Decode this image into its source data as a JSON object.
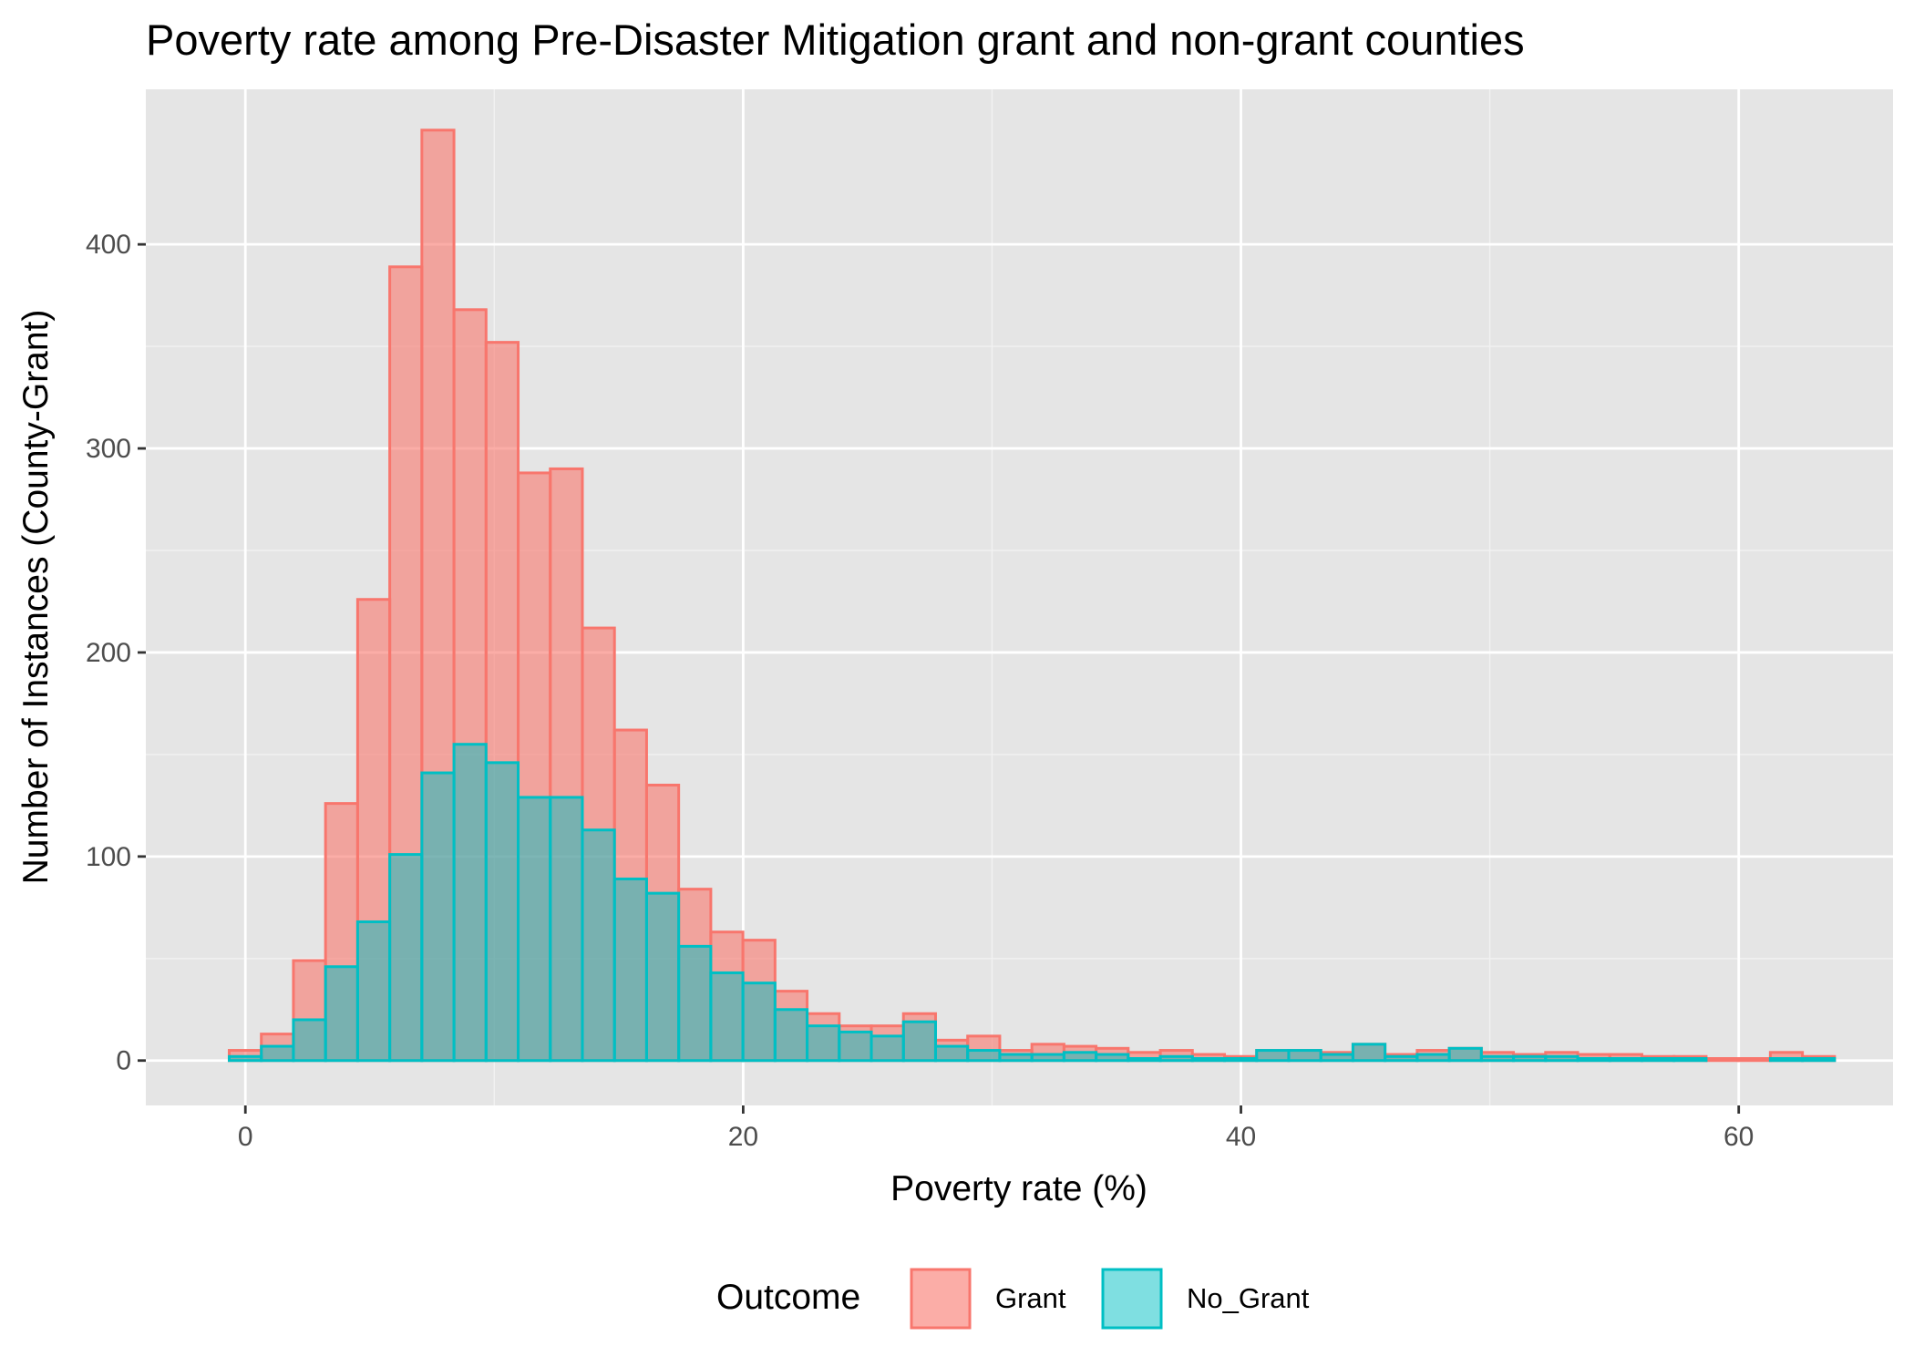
{
  "chart_data": {
    "type": "bar",
    "subtype": "overlaid-histogram",
    "title": "Poverty rate among Pre-Disaster Mitigation grant and non-grant counties",
    "xlabel": "Poverty rate (%)",
    "ylabel": "Number of Instances (County-Grant)",
    "xlim": [
      -4.0,
      66.2
    ],
    "ylim": [
      -22,
      476
    ],
    "xticks": [
      0,
      20,
      40,
      60
    ],
    "yticks": [
      0,
      100,
      200,
      300,
      400
    ],
    "grid": true,
    "legend_position": "bottom",
    "legend_title": "Outcome",
    "bin_width": 1.29,
    "x_start": -0.65,
    "series": [
      {
        "name": "Grant",
        "fill": "#f8766d",
        "stroke": "#f8766d",
        "values": [
          5,
          13,
          49,
          126,
          226,
          389,
          456,
          368,
          352,
          288,
          290,
          212,
          162,
          135,
          84,
          63,
          59,
          34,
          23,
          17,
          17,
          23,
          10,
          12,
          5,
          8,
          7,
          6,
          4,
          5,
          3,
          2,
          5,
          5,
          4,
          8,
          3,
          5,
          6,
          4,
          3,
          4,
          3,
          3,
          2,
          2,
          1,
          1,
          4,
          2
        ]
      },
      {
        "name": "No_Grant",
        "fill": "#00bfc4",
        "stroke": "#00bfc4",
        "values": [
          2,
          7,
          20,
          46,
          68,
          101,
          141,
          155,
          146,
          129,
          129,
          113,
          89,
          82,
          56,
          43,
          38,
          25,
          17,
          14,
          12,
          19,
          7,
          5,
          3,
          3,
          4,
          3,
          1,
          2,
          1,
          1,
          5,
          5,
          3,
          8,
          2,
          3,
          6,
          2,
          2,
          2,
          1,
          1,
          1,
          1,
          0,
          0,
          1,
          1
        ]
      }
    ]
  }
}
